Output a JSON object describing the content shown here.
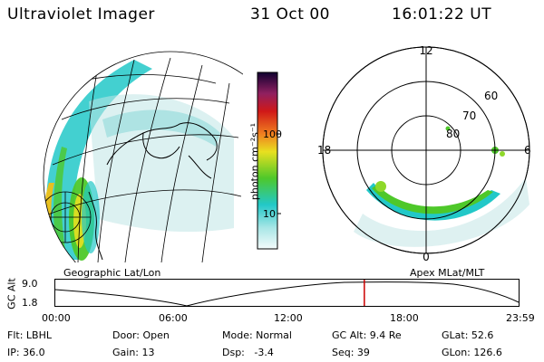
{
  "header": {
    "instrument": "Ultraviolet Imager",
    "date": "31 Oct 00",
    "time": "16:01:22 UT"
  },
  "colorbar": {
    "unit_label": "photon cm⁻²s⁻¹",
    "ticks": [
      "100",
      "10"
    ]
  },
  "polar_plot": {
    "mlt_labels": {
      "top": "12",
      "left": "18",
      "right": "6",
      "bottom": "0"
    },
    "lat_labels": [
      "60",
      "70",
      "80"
    ]
  },
  "panels": {
    "left_caption": "Geographic Lat/Lon",
    "right_caption": "Apex MLat/MLT"
  },
  "altitude_strip": {
    "axis_label": "GC Alt",
    "ticks": [
      "9.0",
      "1.8"
    ],
    "time_ticks": [
      "00:00",
      "06:00",
      "12:00",
      "18:00",
      "23:59"
    ],
    "current_time_fraction": 0.667
  },
  "status": {
    "flt": "Flt: LBHL",
    "door": "Door: Open",
    "mode": "Mode: Normal",
    "gc_alt": "GC Alt: 9.4 Re",
    "glat": "GLat: 52.6",
    "ip": "IP: 36.0",
    "gain": "Gain: 13",
    "dsp": "Dsp:   -3.4",
    "seq": "Seq: 39",
    "glon": "GLon: 126.6"
  },
  "colors": {
    "aurora_cyan": "#22c8c8",
    "aurora_green": "#4ec82a",
    "aurora_yellow": "#e8e020",
    "time_marker": "#cc0000"
  }
}
